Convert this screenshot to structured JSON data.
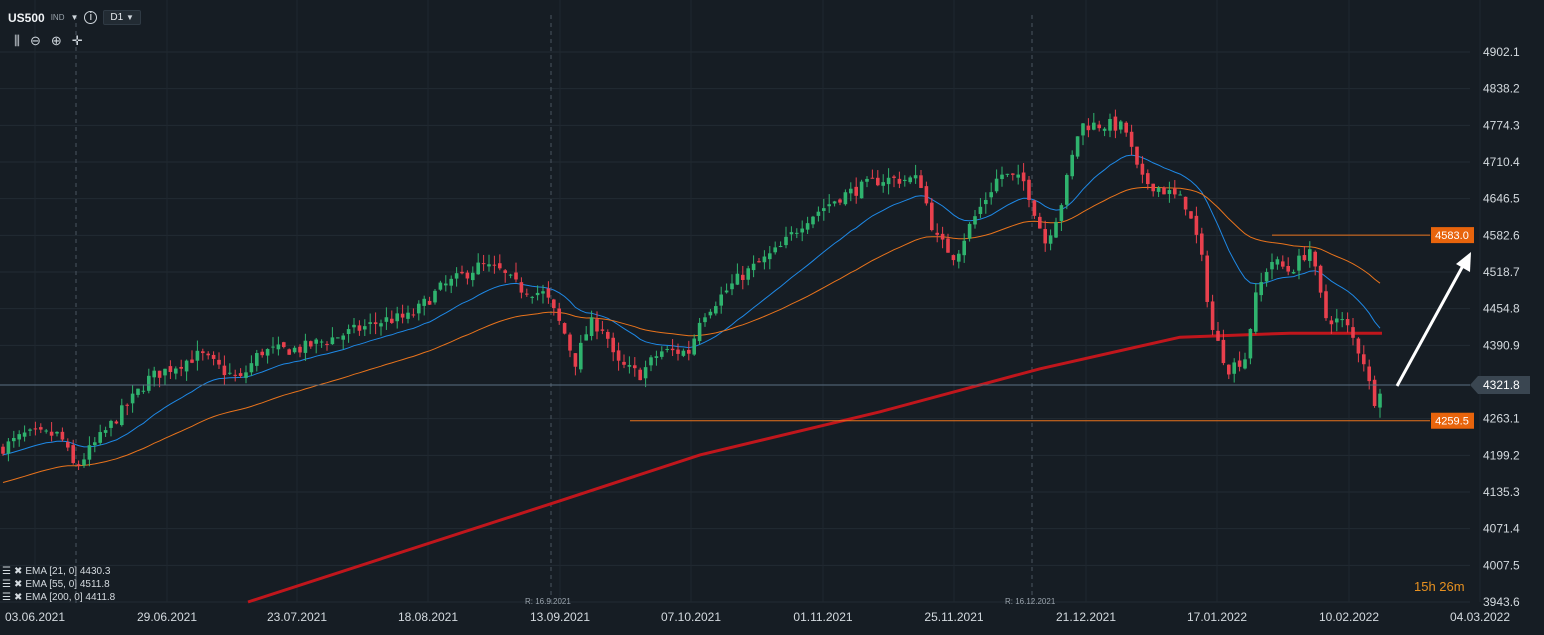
{
  "header": {
    "symbol": "US500",
    "instrument_type": "IND",
    "timeframe": "D1"
  },
  "toolbar_icons": [
    "candles-icon",
    "zoom-out-icon",
    "zoom-in-icon",
    "crosshair-icon"
  ],
  "indicators": [
    {
      "label": "EMA [21, 0] 4430.3",
      "color": "#1e88e5"
    },
    {
      "label": "EMA [55, 0] 4511.8",
      "color": "#e8731c"
    },
    {
      "label": "EMA [200, 0] 4411.8",
      "color": "#c0161c"
    }
  ],
  "countdown": "15h 26m",
  "separators": [
    {
      "label": "R: 16.9.2021"
    },
    {
      "label": "R: 16.12.2021"
    }
  ],
  "colors": {
    "background": "#161d24",
    "up": "#2fb36e",
    "down": "#e8404d",
    "ema21": "#1e88e5",
    "ema55": "#e8731c",
    "ema200": "#c0161c",
    "level": "#e8731c",
    "level_label_bg": "#e8640c"
  },
  "chart_data": {
    "type": "candlestick",
    "instrument": "US500",
    "timeframe": "D1",
    "x_ticks": [
      "03.06.2021",
      "29.06.2021",
      "23.07.2021",
      "18.08.2021",
      "13.09.2021",
      "07.10.2021",
      "01.11.2021",
      "25.11.2021",
      "21.12.2021",
      "17.01.2022",
      "10.02.2022",
      "04.03.2022"
    ],
    "y_ticks": [
      4902.1,
      4838.2,
      4774.3,
      4710.4,
      4646.5,
      4582.6,
      4518.7,
      4454.8,
      4390.9,
      4321.8,
      4263.1,
      4199.2,
      4135.3,
      4071.4,
      4007.5,
      3943.6
    ],
    "ylim": [
      3943.6,
      4902.1
    ],
    "current_price": 4321.8,
    "levels": [
      {
        "value": 4583.0,
        "label": "4583.0"
      },
      {
        "value": 4259.5,
        "label": "4259.5"
      }
    ],
    "series": [
      {
        "name": "EMA [21, 0]",
        "value": 4430.3
      },
      {
        "name": "EMA [55, 0]",
        "value": 4511.8
      },
      {
        "name": "EMA [200, 0]",
        "value": 4411.8
      }
    ]
  }
}
